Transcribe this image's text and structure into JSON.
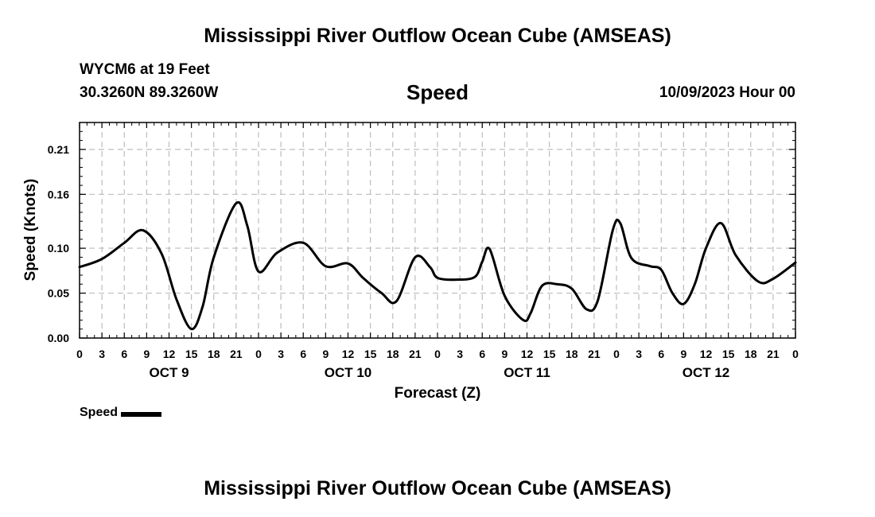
{
  "page": {
    "title_top": "Mississippi River Outflow Ocean Cube (AMSEAS)",
    "title_bottom": "Mississippi River Outflow Ocean Cube (AMSEAS)",
    "station": "WYCM6 at 19 Feet",
    "coords": "30.3260N  89.3260W",
    "subtitle": "Speed",
    "datetime": "10/09/2023 Hour 00",
    "legend_label": "Speed"
  },
  "chart_data": {
    "type": "line",
    "title": "Speed",
    "xlabel": "Forecast (Z)",
    "ylabel": "Speed (Knots)",
    "xlim": [
      0,
      96
    ],
    "ylim": [
      0,
      0.24
    ],
    "yticks": [
      0.0,
      0.05,
      0.1,
      0.16,
      0.21
    ],
    "ytick_labels": [
      "0.00",
      "0.05",
      "0.10",
      "0.16",
      "0.21"
    ],
    "xtick_labels": [
      "0",
      "3",
      "6",
      "9",
      "12",
      "15",
      "18",
      "21",
      "0",
      "3",
      "6",
      "9",
      "12",
      "15",
      "18",
      "21",
      "0",
      "3",
      "6",
      "9",
      "12",
      "15",
      "18",
      "21",
      "0",
      "3",
      "6",
      "9",
      "12",
      "15",
      "18",
      "21",
      "0"
    ],
    "day_labels": [
      {
        "label": "OCT 9",
        "hour": 12
      },
      {
        "label": "OCT 10",
        "hour": 36
      },
      {
        "label": "OCT 11",
        "hour": 60
      },
      {
        "label": "OCT 12",
        "hour": 84
      }
    ],
    "grid": true,
    "line_color": "#000000",
    "series": [
      {
        "name": "Speed",
        "x": [
          0,
          3,
          6,
          8.5,
          11,
          13,
          15,
          16.5,
          18,
          21,
          22.5,
          24,
          26.5,
          30,
          33,
          36,
          38,
          40.5,
          42.5,
          45,
          47,
          48,
          50.5,
          53,
          54,
          55,
          57,
          59.5,
          60.5,
          62,
          64,
          66,
          68,
          69.5,
          71.5,
          72.5,
          74,
          76.5,
          78,
          79.5,
          81,
          82.5,
          84,
          86,
          88,
          91,
          93,
          96
        ],
        "values": [
          0.079,
          0.088,
          0.106,
          0.12,
          0.094,
          0.043,
          0.01,
          0.035,
          0.09,
          0.15,
          0.125,
          0.074,
          0.095,
          0.106,
          0.08,
          0.083,
          0.067,
          0.05,
          0.041,
          0.09,
          0.079,
          0.067,
          0.065,
          0.068,
          0.085,
          0.099,
          0.047,
          0.02,
          0.028,
          0.058,
          0.06,
          0.055,
          0.032,
          0.042,
          0.12,
          0.128,
          0.089,
          0.08,
          0.076,
          0.05,
          0.038,
          0.06,
          0.1,
          0.128,
          0.092,
          0.063,
          0.066,
          0.084
        ]
      }
    ]
  }
}
